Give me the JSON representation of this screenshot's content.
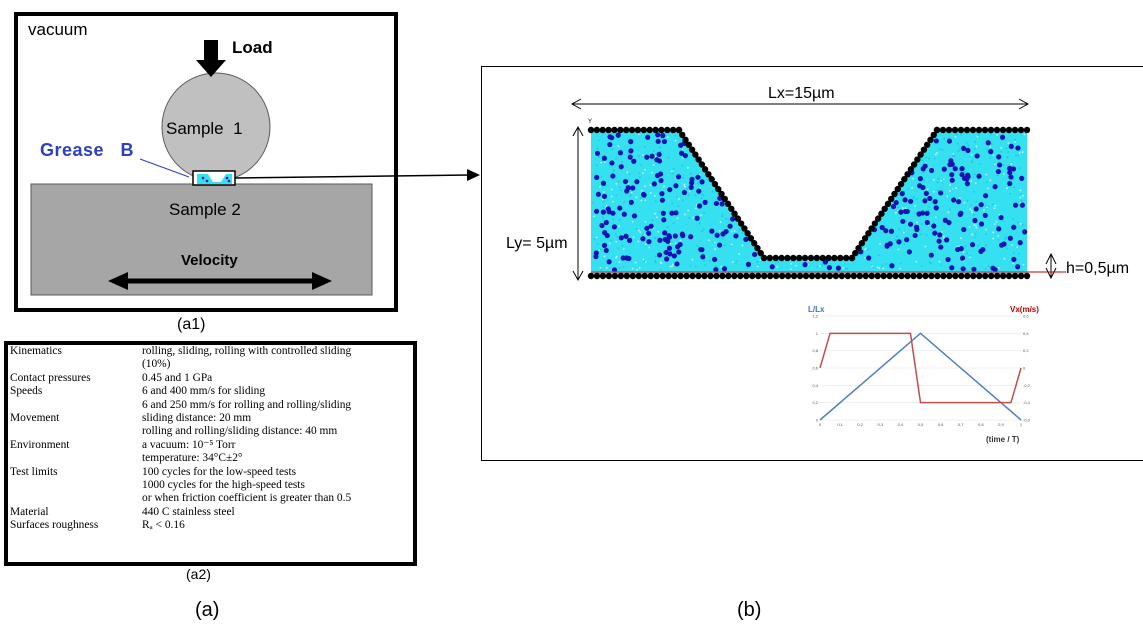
{
  "panel_a1": {
    "vacuum": "vacuum",
    "load": "Load",
    "sample1": "Sample  1",
    "sample2": "Sample 2",
    "grease": "Grease   B",
    "velocity": "Velocity",
    "caption": "(a1)"
  },
  "panel_a2": {
    "rows": [
      {
        "key": "Kinematics",
        "lines": [
          "rolling, sliding, rolling with controlled sliding",
          "(10%)"
        ]
      },
      {
        "key": "Contact pressures",
        "lines": [
          "0.45 and 1 GPa"
        ]
      },
      {
        "key": "Speeds",
        "lines": [
          "6 and 400 mm/s for sliding",
          "6 and 250 mm/s for rolling and rolling/sliding"
        ]
      },
      {
        "key": "Movement",
        "lines": [
          "sliding distance: 20 mm",
          "rolling and rolling/sliding distance: 40 mm"
        ]
      },
      {
        "key": "Environment",
        "lines": [
          "a vacuum: 10⁻⁵ Torr",
          "temperature: 34°C±2°"
        ]
      },
      {
        "key": "Test limits",
        "lines": [
          "100 cycles for the low-speed tests",
          "1000 cycles for the high-speed tests",
          "or when friction coefficient is greater than 0.5"
        ]
      },
      {
        "key": "Material",
        "lines": [
          "440 C stainless steel"
        ]
      },
      {
        "key": "Surfaces roughness",
        "lines": [
          "Rₐ < 0.16"
        ]
      }
    ],
    "caption": "(a2)"
  },
  "captions": {
    "a": "(a)",
    "b": "(b)"
  },
  "panel_b": {
    "lx": "Lx=15µm",
    "ly": "Ly= 5µm",
    "h": "h=0,5µm",
    "axis_y": "Y",
    "inset": {
      "left_title": "L/Lx",
      "right_title": "Vx(m/s)",
      "x_label": "(time / T)",
      "x_ticks": [
        "0",
        "0,1",
        "0,2",
        "0,3",
        "0,4",
        "0,5",
        "0,6",
        "0,7",
        "0,8",
        "0,9",
        "1"
      ],
      "left_ticks": [
        "0",
        "0,2",
        "0,4",
        "0,6",
        "0,8",
        "1",
        "1,2"
      ],
      "right_ticks": [
        "-0,6",
        "-0,4",
        "-0,2",
        "0",
        "0,2",
        "0,4",
        "0,6"
      ],
      "colors": {
        "position": "#4f81bd",
        "velocity": "#c0504d"
      },
      "position_series": [
        [
          0,
          0
        ],
        [
          0.5,
          1
        ],
        [
          1,
          0
        ]
      ],
      "velocity_series": [
        [
          0,
          0
        ],
        [
          0.05,
          0.4
        ],
        [
          0.45,
          0.4
        ],
        [
          0.5,
          -0.4
        ],
        [
          0.95,
          -0.4
        ],
        [
          1,
          0
        ]
      ]
    }
  },
  "colors": {
    "grease": "#2e3fbf",
    "fluid": "#35e0f0",
    "particles": "#1414b4",
    "sample2": "#a6a6a6",
    "sample1": "#c0c0c0"
  }
}
